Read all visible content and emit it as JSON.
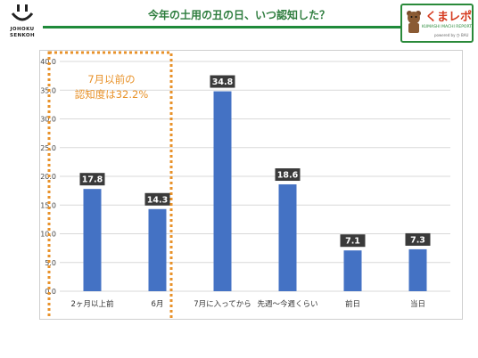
{
  "header": {
    "title": "今年の土用の丑の日、いつ認知した？",
    "logo_line1": "JOHOKU",
    "logo_line2": "SENKOH",
    "badge_name": "くまレポ",
    "badge_sub": "KUMASHI MACHI REPORT",
    "badge_sub2": "powered by ひ BAU"
  },
  "colors": {
    "bar": "#4472c4",
    "label_bg": "#3a3a3a",
    "accent": "#e8922a",
    "title": "#2e7d3e"
  },
  "chart_data": {
    "type": "bar",
    "categories": [
      "2ヶ月以上前",
      "6月",
      "7月に入ってから",
      "先週～今週くらい",
      "前日",
      "当日"
    ],
    "values": [
      17.8,
      14.3,
      34.8,
      18.6,
      7.1,
      7.3
    ],
    "ylim": [
      0,
      40
    ],
    "yticks": [
      "0.0",
      "5.0",
      "10.0",
      "15.0",
      "20.0",
      "25.0",
      "30.0",
      "35.0",
      "40.0"
    ],
    "grid": true,
    "annotation": {
      "line1": "7月以前の",
      "line2": "認知度は32.2%"
    }
  }
}
